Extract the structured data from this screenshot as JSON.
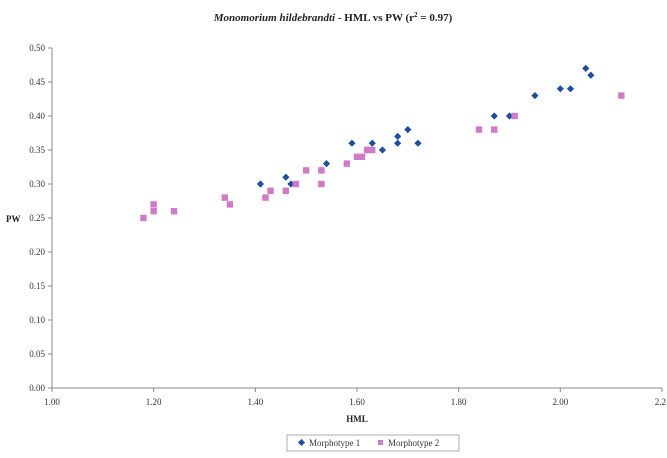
{
  "chart_data": {
    "type": "scatter",
    "title": {
      "species": "Monomorium hildebrandti",
      "rest_prefix": " - HML vs PW (r",
      "superscript": "2",
      "rest_suffix": " = 0.97)"
    },
    "xlabel": "HML",
    "ylabel": "PW",
    "xlim": [
      1.0,
      2.2
    ],
    "ylim": [
      0.0,
      0.5
    ],
    "x_ticks": [
      1.0,
      1.2,
      1.4,
      1.6,
      1.8,
      2.0,
      2.2
    ],
    "x_tick_labels": [
      "1.00",
      "1.20",
      "1.40",
      "1.60",
      "1.80",
      "2.00",
      "2.2"
    ],
    "y_ticks": [
      0.0,
      0.05,
      0.1,
      0.15,
      0.2,
      0.25,
      0.3,
      0.35,
      0.4,
      0.45,
      0.5
    ],
    "y_tick_labels": [
      "0.00",
      "0.05",
      "0.10",
      "0.15",
      "0.20",
      "0.25",
      "0.30",
      "0.35",
      "0.40",
      "0.45",
      "0.50"
    ],
    "grid": false,
    "legend_position": "bottom-center",
    "series": [
      {
        "name": "Morphotype 1",
        "marker": "diamond",
        "color": "#1f4e9c",
        "points": [
          [
            1.41,
            0.3
          ],
          [
            1.46,
            0.31
          ],
          [
            1.47,
            0.3
          ],
          [
            1.53,
            0.32
          ],
          [
            1.54,
            0.33
          ],
          [
            1.59,
            0.36
          ],
          [
            1.62,
            0.35
          ],
          [
            1.63,
            0.36
          ],
          [
            1.65,
            0.35
          ],
          [
            1.68,
            0.36
          ],
          [
            1.68,
            0.37
          ],
          [
            1.7,
            0.38
          ],
          [
            1.72,
            0.36
          ],
          [
            1.87,
            0.4
          ],
          [
            1.9,
            0.4
          ],
          [
            1.95,
            0.43
          ],
          [
            2.0,
            0.44
          ],
          [
            2.02,
            0.44
          ],
          [
            2.05,
            0.47
          ],
          [
            2.06,
            0.46
          ]
        ]
      },
      {
        "name": "Morphotype 2",
        "marker": "square",
        "color": "#d07ac8",
        "points": [
          [
            1.18,
            0.25
          ],
          [
            1.2,
            0.26
          ],
          [
            1.2,
            0.27
          ],
          [
            1.24,
            0.26
          ],
          [
            1.34,
            0.28
          ],
          [
            1.35,
            0.27
          ],
          [
            1.42,
            0.28
          ],
          [
            1.43,
            0.29
          ],
          [
            1.46,
            0.29
          ],
          [
            1.48,
            0.3
          ],
          [
            1.5,
            0.32
          ],
          [
            1.53,
            0.3
          ],
          [
            1.53,
            0.32
          ],
          [
            1.58,
            0.33
          ],
          [
            1.6,
            0.34
          ],
          [
            1.61,
            0.34
          ],
          [
            1.62,
            0.35
          ],
          [
            1.63,
            0.35
          ],
          [
            1.84,
            0.38
          ],
          [
            1.87,
            0.38
          ],
          [
            1.91,
            0.4
          ],
          [
            2.12,
            0.43
          ]
        ]
      }
    ]
  }
}
